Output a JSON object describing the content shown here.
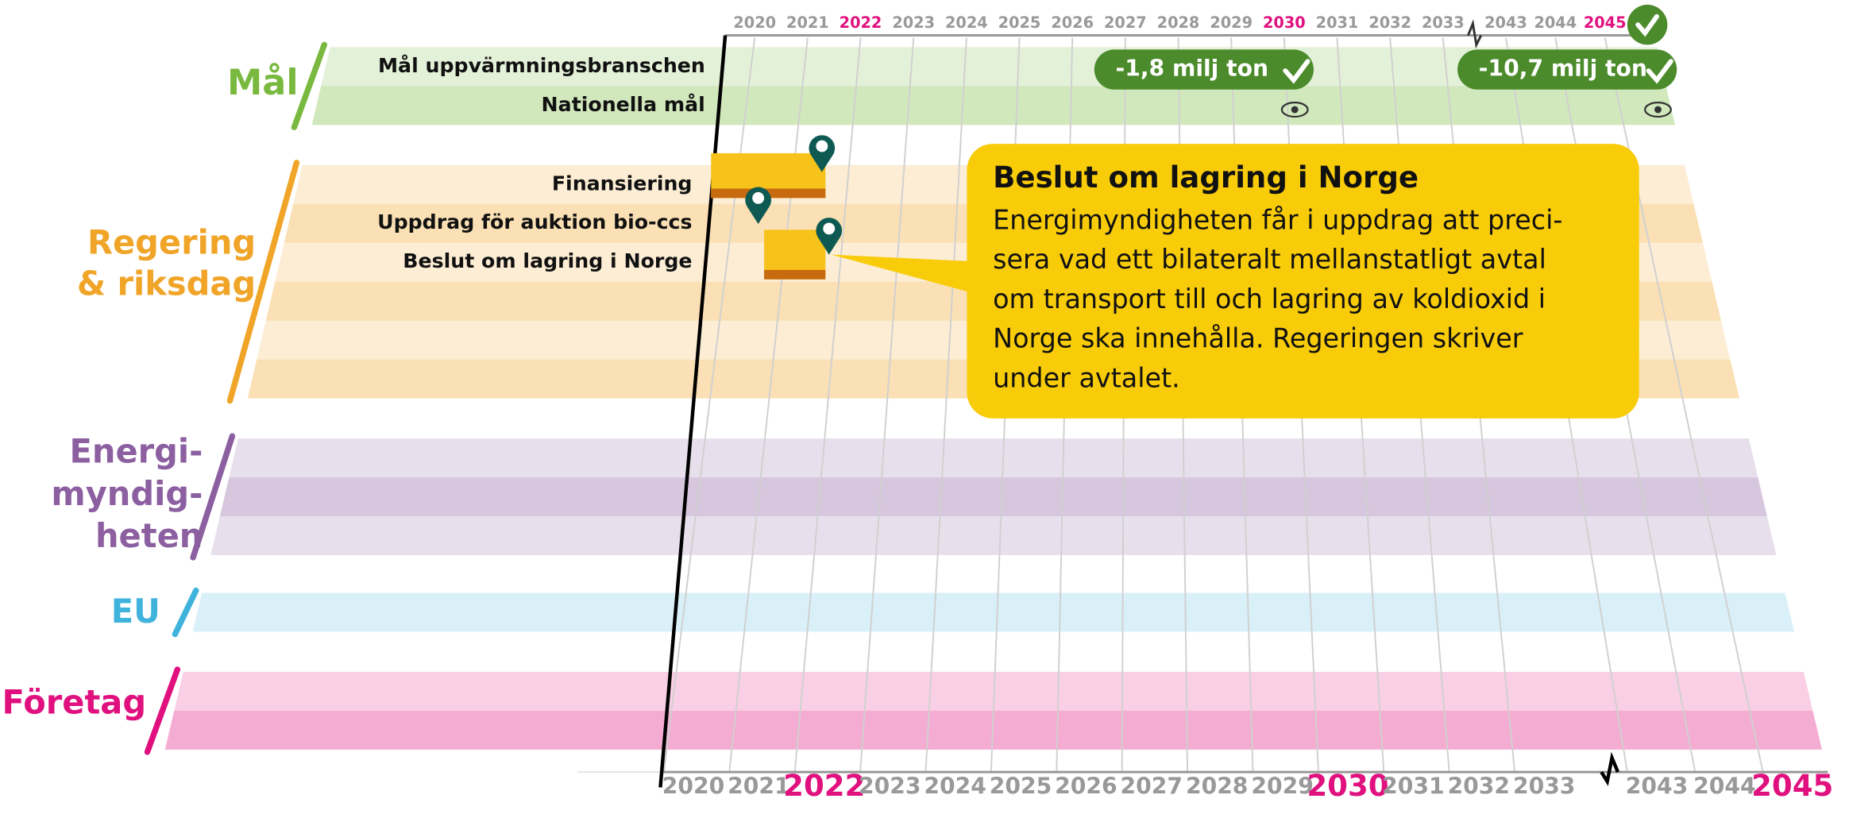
{
  "years": [
    {
      "label": "2020"
    },
    {
      "label": "2021"
    },
    {
      "label": "2022",
      "highlight": true
    },
    {
      "label": "2023"
    },
    {
      "label": "2024"
    },
    {
      "label": "2025"
    },
    {
      "label": "2026"
    },
    {
      "label": "2027"
    },
    {
      "label": "2028"
    },
    {
      "label": "2029"
    },
    {
      "label": "2030",
      "highlight": true
    },
    {
      "label": "2031"
    },
    {
      "label": "2032"
    },
    {
      "label": "2033"
    },
    {
      "label": "2043"
    },
    {
      "label": "2044"
    },
    {
      "label": "2045",
      "highlight": true
    }
  ],
  "highlight_color": "#e0117f",
  "groups": [
    {
      "label": [
        "Mål"
      ],
      "color": "#7ab940",
      "rows": [
        "Mål uppvärmningsbranschen",
        "Nationella mål"
      ]
    },
    {
      "label": [
        "Regering",
        "& riksdag"
      ],
      "color": "#f0a528",
      "rows": [
        "Finansiering",
        "Uppdrag för auktion bio-ccs",
        "Beslut om lagring i Norge",
        null,
        null,
        null
      ]
    },
    {
      "label": [
        "Energi-",
        "myndig-",
        "heten"
      ],
      "color": "#8c5fa0",
      "rows": [
        null,
        null,
        null
      ]
    },
    {
      "label": [
        "EU"
      ],
      "color": "#3fb3dc",
      "rows": [
        null
      ]
    },
    {
      "label": [
        "Företag"
      ],
      "color": "#e0117f",
      "rows": [
        null,
        null
      ]
    }
  ],
  "badges": [
    {
      "text": "-1,8 milj ton"
    },
    {
      "text": "-10,7 milj ton"
    }
  ],
  "callout": {
    "title": "Beslut om lagring i Norge",
    "body": [
      "Energimyndigheten får i uppdrag att preci-",
      "sera vad ett bilateralt mellanstatligt avtal",
      "om transport till och lagring av koldioxid i",
      "Norge ska innehålla. Regeringen skriver",
      "under avtalet."
    ]
  }
}
